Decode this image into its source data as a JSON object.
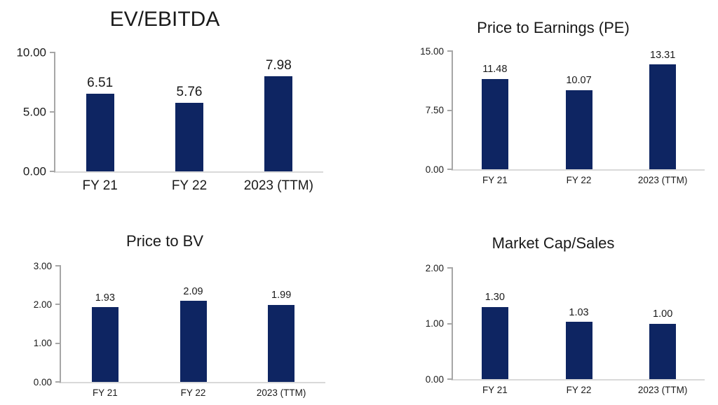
{
  "page": {
    "background_color": "#ffffff",
    "text_color": "#1a1a1a",
    "axis_line_color": "#a6a6a6",
    "baseline_color": "#d9d9d9",
    "bar_color": "#0e2562"
  },
  "chart_data": [
    {
      "type": "bar",
      "title": "EV/EBITDA",
      "categories": [
        "FY 21",
        "FY 22",
        "2023 (TTM)"
      ],
      "values": [
        6.51,
        5.76,
        7.98
      ],
      "value_labels": [
        "6.51",
        "5.76",
        "7.98"
      ],
      "xlabel": "",
      "ylabel": "",
      "ylim": [
        0,
        10
      ],
      "yticks": [
        {
          "value": 0,
          "label": "0.00"
        },
        {
          "value": 5,
          "label": "5.00"
        },
        {
          "value": 10,
          "label": "10.00"
        }
      ],
      "grid": false,
      "legend": "none",
      "bar_color": "#0e2562"
    },
    {
      "type": "bar",
      "title": "Price to Earnings (PE)",
      "categories": [
        "FY 21",
        "FY 22",
        "2023 (TTM)"
      ],
      "values": [
        11.48,
        10.07,
        13.31
      ],
      "value_labels": [
        "11.48",
        "10.07",
        "13.31"
      ],
      "xlabel": "",
      "ylabel": "",
      "ylim": [
        0,
        15
      ],
      "yticks": [
        {
          "value": 0,
          "label": "0.00"
        },
        {
          "value": 7.5,
          "label": "7.50"
        },
        {
          "value": 15,
          "label": "15.00"
        }
      ],
      "grid": false,
      "legend": "none",
      "bar_color": "#0e2562"
    },
    {
      "type": "bar",
      "title": "Price to BV",
      "categories": [
        "FY 21",
        "FY 22",
        "2023 (TTM)"
      ],
      "values": [
        1.93,
        2.09,
        1.99
      ],
      "value_labels": [
        "1.93",
        "2.09",
        "1.99"
      ],
      "xlabel": "",
      "ylabel": "",
      "ylim": [
        0,
        3
      ],
      "yticks": [
        {
          "value": 0,
          "label": "0.00"
        },
        {
          "value": 1,
          "label": "1.00"
        },
        {
          "value": 2,
          "label": "2.00"
        },
        {
          "value": 3,
          "label": "3.00"
        }
      ],
      "grid": false,
      "legend": "none",
      "bar_color": "#0e2562"
    },
    {
      "type": "bar",
      "title": "Market Cap/Sales",
      "categories": [
        "FY 21",
        "FY 22",
        "2023 (TTM)"
      ],
      "values": [
        1.3,
        1.03,
        1.0
      ],
      "value_labels": [
        "1.30",
        "1.03",
        "1.00"
      ],
      "xlabel": "",
      "ylabel": "",
      "ylim": [
        0,
        2
      ],
      "yticks": [
        {
          "value": 0,
          "label": "0.00"
        },
        {
          "value": 1,
          "label": "1.00"
        },
        {
          "value": 2,
          "label": "2.00"
        }
      ],
      "grid": false,
      "legend": "none",
      "bar_color": "#0e2562"
    }
  ]
}
